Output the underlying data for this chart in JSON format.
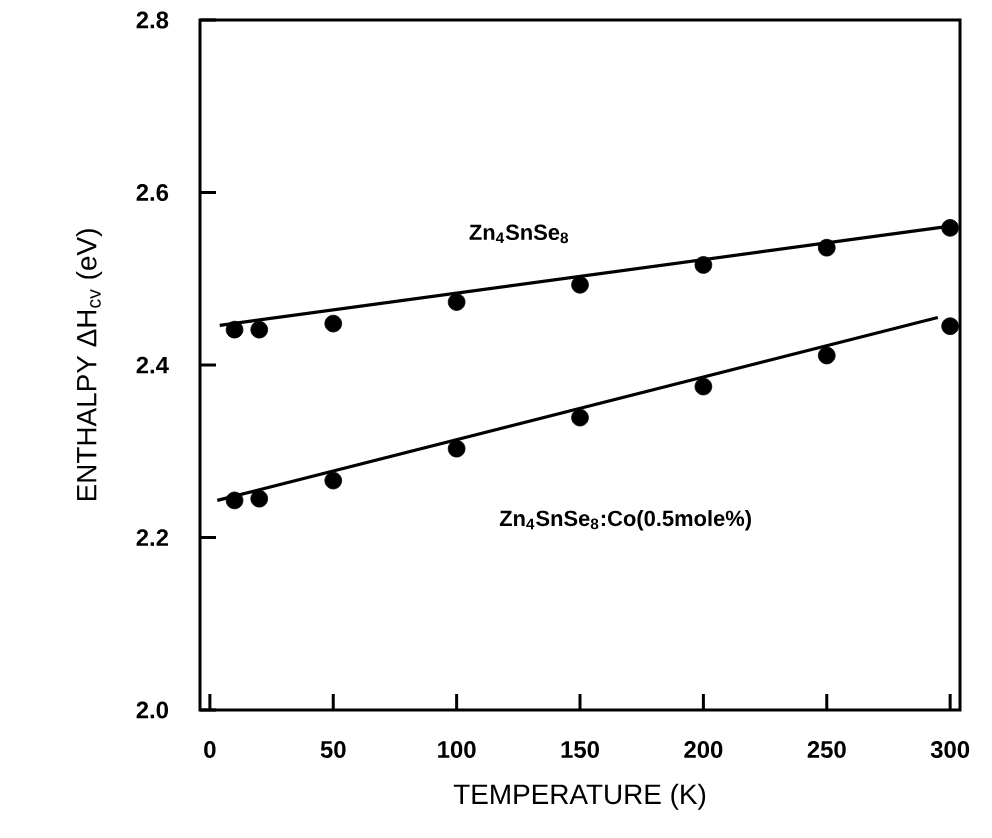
{
  "chart_data": {
    "type": "scatter",
    "xlabel": "TEMPERATURE (K)",
    "ylabel": "ENTHALPY ΔH$_{cv}$ (eV)",
    "xlim": [
      -4,
      304
    ],
    "ylim": [
      2.0,
      2.8
    ],
    "xticks": [
      0,
      50,
      100,
      150,
      200,
      250,
      300
    ],
    "yticks": [
      {
        "value": 2,
        "label": "2.0"
      },
      2.2,
      2.4,
      2.6,
      2.8
    ],
    "grid": false,
    "series": [
      {
        "marker": "circle",
        "color": "#000000",
        "x": [
          10,
          20,
          50,
          100,
          150,
          200,
          250,
          300
        ],
        "values": [
          2.441,
          2.441,
          2.448,
          2.473,
          2.493,
          2.516,
          2.536,
          2.559
        ]
      },
      {
        "marker": "circle",
        "color": "#000000",
        "x": [
          10,
          20,
          50,
          100,
          150,
          200,
          250,
          300
        ],
        "values": [
          2.243,
          2.245,
          2.266,
          2.303,
          2.339,
          2.375,
          2.411,
          2.445
        ]
      },
      {
        "type": "line",
        "marker": "none",
        "line_style": "solid",
        "color": "#000000",
        "x": [
          4,
          300
        ],
        "values": [
          2.446,
          2.561
        ]
      },
      {
        "type": "line",
        "marker": "none",
        "line_style": "solid",
        "color": "#000000",
        "x": [
          3,
          295
        ],
        "values": [
          2.243,
          2.455
        ]
      }
    ],
    "annotations": [
      "Zn$_{4}$SnSe$_{8}$",
      "Zn$_{4}$SnSe$_{8}$:Co(0.5mole%)"
    ]
  }
}
